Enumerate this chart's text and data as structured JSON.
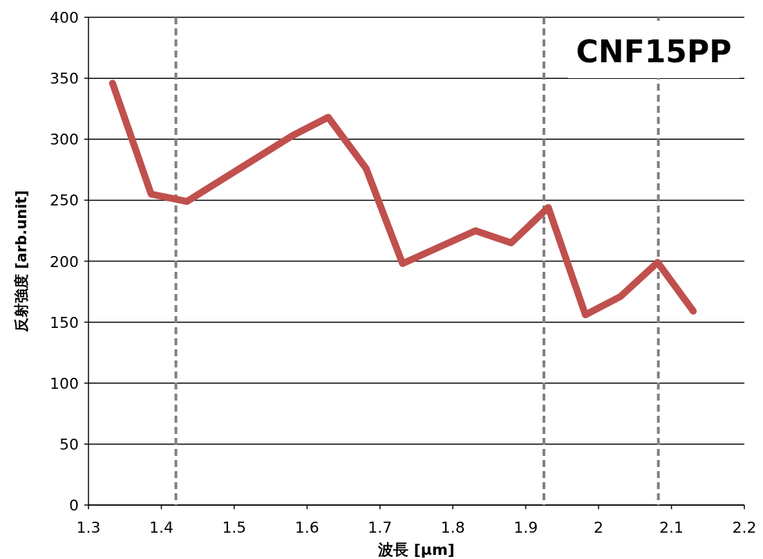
{
  "chart_data": {
    "type": "line",
    "xlabel": "波長 [μm]",
    "ylabel": "反射強度 [arb.unit]",
    "annotations": [
      "CNF15PP"
    ],
    "x": [
      1.333,
      1.386,
      1.435,
      1.58,
      1.629,
      1.681,
      1.731,
      1.831,
      1.88,
      1.931,
      1.982,
      2.03,
      2.081,
      2.13
    ],
    "series": [
      {
        "color": "#c0504d",
        "values": [
          346,
          255,
          249,
          303,
          318,
          276,
          198,
          225,
          215,
          244,
          156,
          171,
          199,
          159
        ]
      }
    ],
    "xlim": [
      1.3,
      2.2
    ],
    "xticks": [
      1.3,
      1.4,
      1.5,
      1.6,
      1.7,
      1.8,
      1.9,
      2,
      2.1,
      2.2
    ],
    "ylim": [
      0,
      400
    ],
    "yticks": [
      0,
      50,
      100,
      150,
      200,
      250,
      300,
      350,
      400
    ],
    "grid": "y",
    "marker": "none",
    "line_style": "solid",
    "ref_lines": [
      {
        "axis": "x",
        "value": 1.42,
        "color": "#808080",
        "line_style": "dashed"
      },
      {
        "axis": "x",
        "value": 1.925,
        "color": "#808080",
        "line_style": "dashed"
      },
      {
        "axis": "x",
        "value": 2.082,
        "color": "#808080",
        "line_style": "dashed"
      }
    ]
  }
}
